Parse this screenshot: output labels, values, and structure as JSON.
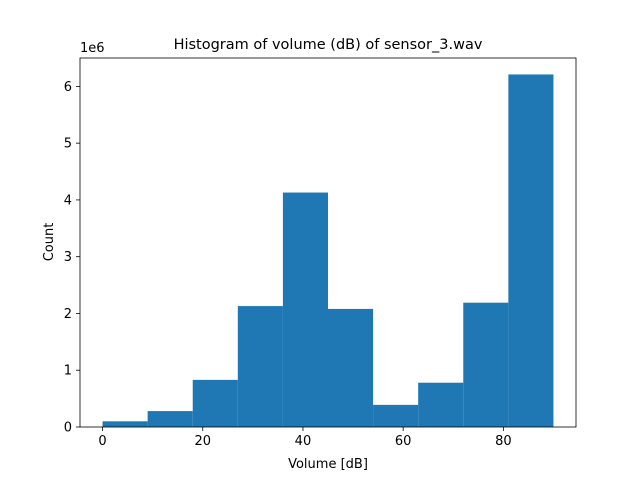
{
  "chart_data": {
    "type": "bar",
    "title": "Histogram of volume (dB) of sensor_3.wav",
    "xlabel": "Volume [dB]",
    "ylabel": "Count",
    "y_offset_label": "1e6",
    "xlim": [
      -4.5,
      94.5
    ],
    "ylim": [
      0,
      6.5
    ],
    "x_ticks": [
      0,
      20,
      40,
      60,
      80
    ],
    "y_ticks": [
      0,
      1,
      2,
      3,
      4,
      5,
      6
    ],
    "bin_edges": [
      0,
      9,
      18,
      27,
      36,
      45,
      54,
      63,
      72,
      81,
      90
    ],
    "values": [
      0.1,
      0.28,
      0.83,
      2.13,
      4.13,
      2.08,
      0.39,
      0.78,
      2.19,
      6.21
    ],
    "value_scale": 1000000,
    "bar_color": "#1f77b4",
    "grid": false
  }
}
